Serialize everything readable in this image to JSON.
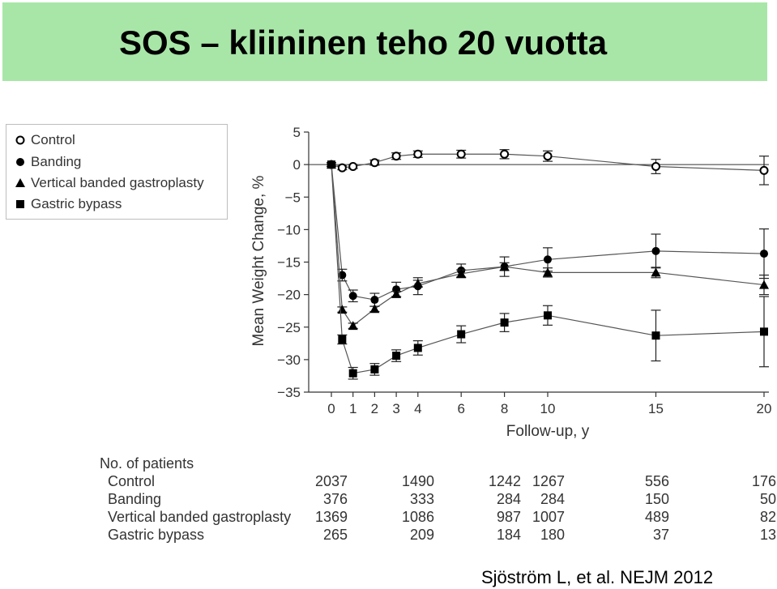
{
  "title": "SOS – kliininen teho 20 vuotta",
  "citation": "Sjöström L, et al. NEJM 2012",
  "colors": {
    "title_bg": "#a8e6a8",
    "axis": "#333333",
    "line": "#555555"
  },
  "chart_data": {
    "type": "line",
    "xlabel": "Follow-up, y",
    "ylabel": "Mean Weight Change, %",
    "ylim": [
      -35,
      5
    ],
    "y_ticks": [
      5,
      0,
      -5,
      -10,
      -15,
      -20,
      -25,
      -30,
      -35
    ],
    "x_ticks": [
      0,
      1,
      2,
      3,
      4,
      6,
      8,
      10,
      15,
      20
    ],
    "legend_position": "top-left",
    "grid": false,
    "series": [
      {
        "name": "Control",
        "marker": "open-circle",
        "x": [
          0,
          0.5,
          1,
          2,
          3,
          4,
          6,
          8,
          10,
          15,
          20
        ],
        "y": [
          0,
          -0.5,
          -0.3,
          0.3,
          1.3,
          1.6,
          1.6,
          1.6,
          1.3,
          -0.3,
          -0.9
        ],
        "err": [
          0.3,
          0.3,
          0.3,
          0.4,
          0.5,
          0.5,
          0.6,
          0.7,
          0.8,
          1.1,
          2.2
        ]
      },
      {
        "name": "Banding",
        "marker": "filled-circle",
        "x": [
          0,
          0.5,
          1,
          2,
          3,
          4,
          6,
          8,
          10,
          15,
          20
        ],
        "y": [
          0,
          -17,
          -20.2,
          -20.8,
          -19.2,
          -18.7,
          -16.3,
          -15.7,
          -14.6,
          -13.3,
          -13.7
        ],
        "err": [
          0.3,
          0.9,
          0.9,
          1.0,
          1.1,
          1.3,
          1.0,
          1.5,
          1.8,
          2.6,
          3.8
        ]
      },
      {
        "name": "Vertical banded gastroplasty",
        "marker": "triangle",
        "x": [
          0,
          0.5,
          1,
          2,
          3,
          4,
          6,
          8,
          10,
          15,
          20
        ],
        "y": [
          0,
          -22.3,
          -24.8,
          -22.2,
          -19.9,
          -18.3,
          -16.8,
          -15.7,
          -16.6,
          -16.6,
          -18.5
        ],
        "err": [
          0.2,
          0.4,
          0.4,
          0.4,
          0.4,
          0.5,
          0.6,
          0.6,
          0.7,
          0.8,
          1.5
        ]
      },
      {
        "name": "Gastric bypass",
        "marker": "filled-square",
        "x": [
          0,
          0.5,
          1,
          2,
          3,
          4,
          6,
          8,
          10,
          15,
          20
        ],
        "y": [
          0,
          -26.9,
          -32.1,
          -31.5,
          -29.4,
          -28.2,
          -26.1,
          -24.3,
          -23.2,
          -26.3,
          -25.7
        ],
        "err": [
          0.2,
          0.7,
          0.9,
          0.9,
          0.9,
          1.1,
          1.3,
          1.4,
          1.5,
          3.9,
          5.4
        ]
      }
    ]
  },
  "patients": {
    "header": "No. of patients",
    "years": [
      0,
      4,
      8,
      10,
      15,
      20
    ],
    "rows": [
      {
        "label": "Control",
        "values": [
          "2037",
          "1490",
          "1242",
          "1267",
          "556",
          "176"
        ]
      },
      {
        "label": "Banding",
        "values": [
          "376",
          "333",
          "284",
          "284",
          "150",
          "50"
        ]
      },
      {
        "label": "Vertical banded gastroplasty",
        "values": [
          "1369",
          "1086",
          "987",
          "1007",
          "489",
          "82"
        ]
      },
      {
        "label": "Gastric bypass",
        "values": [
          "265",
          "209",
          "184",
          "180",
          "37",
          "13"
        ]
      }
    ]
  }
}
